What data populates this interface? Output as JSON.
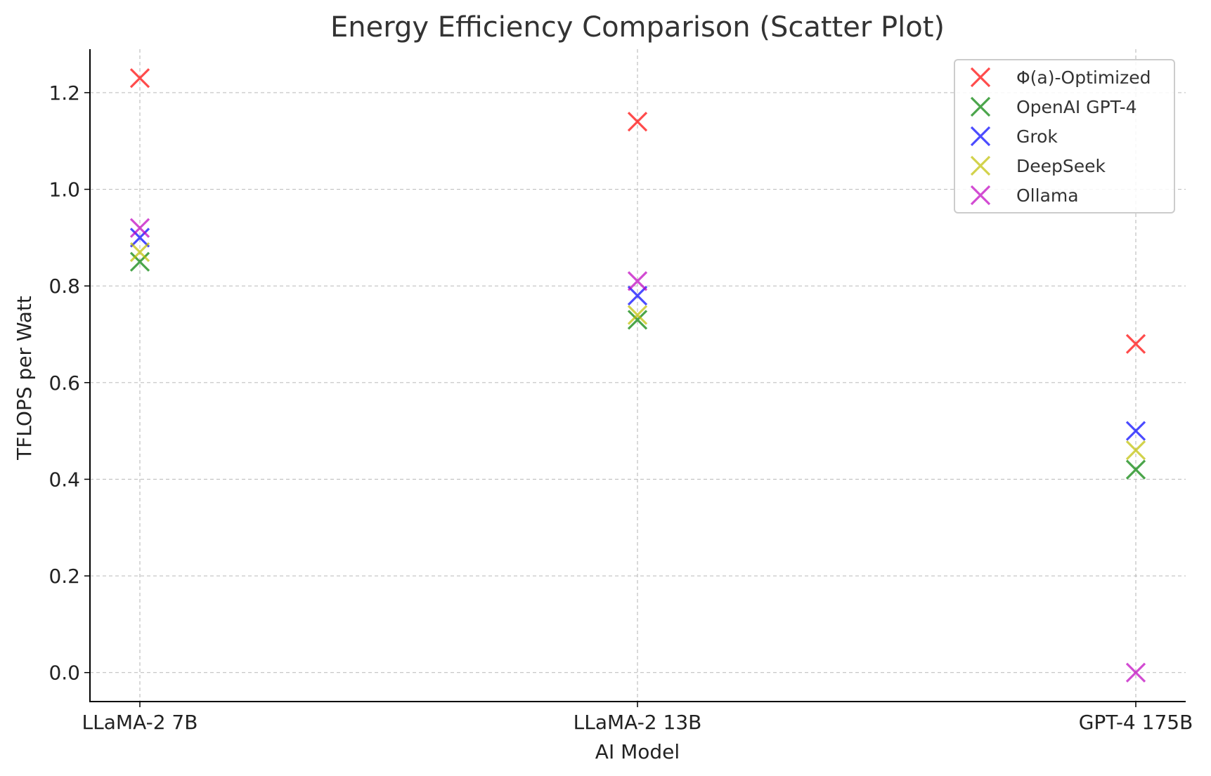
{
  "chart_data": {
    "type": "scatter",
    "title": "Energy Efficiency Comparison (Scatter Plot)",
    "xlabel": "AI Model",
    "ylabel": "TFLOPS per Watt",
    "categories": [
      "LLaMA-2 7B",
      "LLaMA-2 13B",
      "GPT-4 175B"
    ],
    "ylim": [
      -0.06,
      1.29
    ],
    "yticks": [
      0.0,
      0.2,
      0.4,
      0.6,
      0.8,
      1.0,
      1.2
    ],
    "ytick_labels": [
      "0.0",
      "0.2",
      "0.4",
      "0.6",
      "0.8",
      "1.0",
      "1.2"
    ],
    "grid": true,
    "marker": "x",
    "legend_position": "top-right",
    "series": [
      {
        "name": "Φ(a)-Optimized",
        "color": "#ff0000",
        "values": [
          1.23,
          1.14,
          0.68
        ]
      },
      {
        "name": "OpenAI GPT-4",
        "color": "#008000",
        "values": [
          0.85,
          0.73,
          0.42
        ]
      },
      {
        "name": "Grok",
        "color": "#0000ff",
        "values": [
          0.9,
          0.78,
          0.5
        ]
      },
      {
        "name": "DeepSeek",
        "color": "#bfbf00",
        "values": [
          0.87,
          0.74,
          0.46
        ]
      },
      {
        "name": "Ollama",
        "color": "#bf00bf",
        "values": [
          0.92,
          0.81,
          0.0
        ]
      }
    ]
  }
}
